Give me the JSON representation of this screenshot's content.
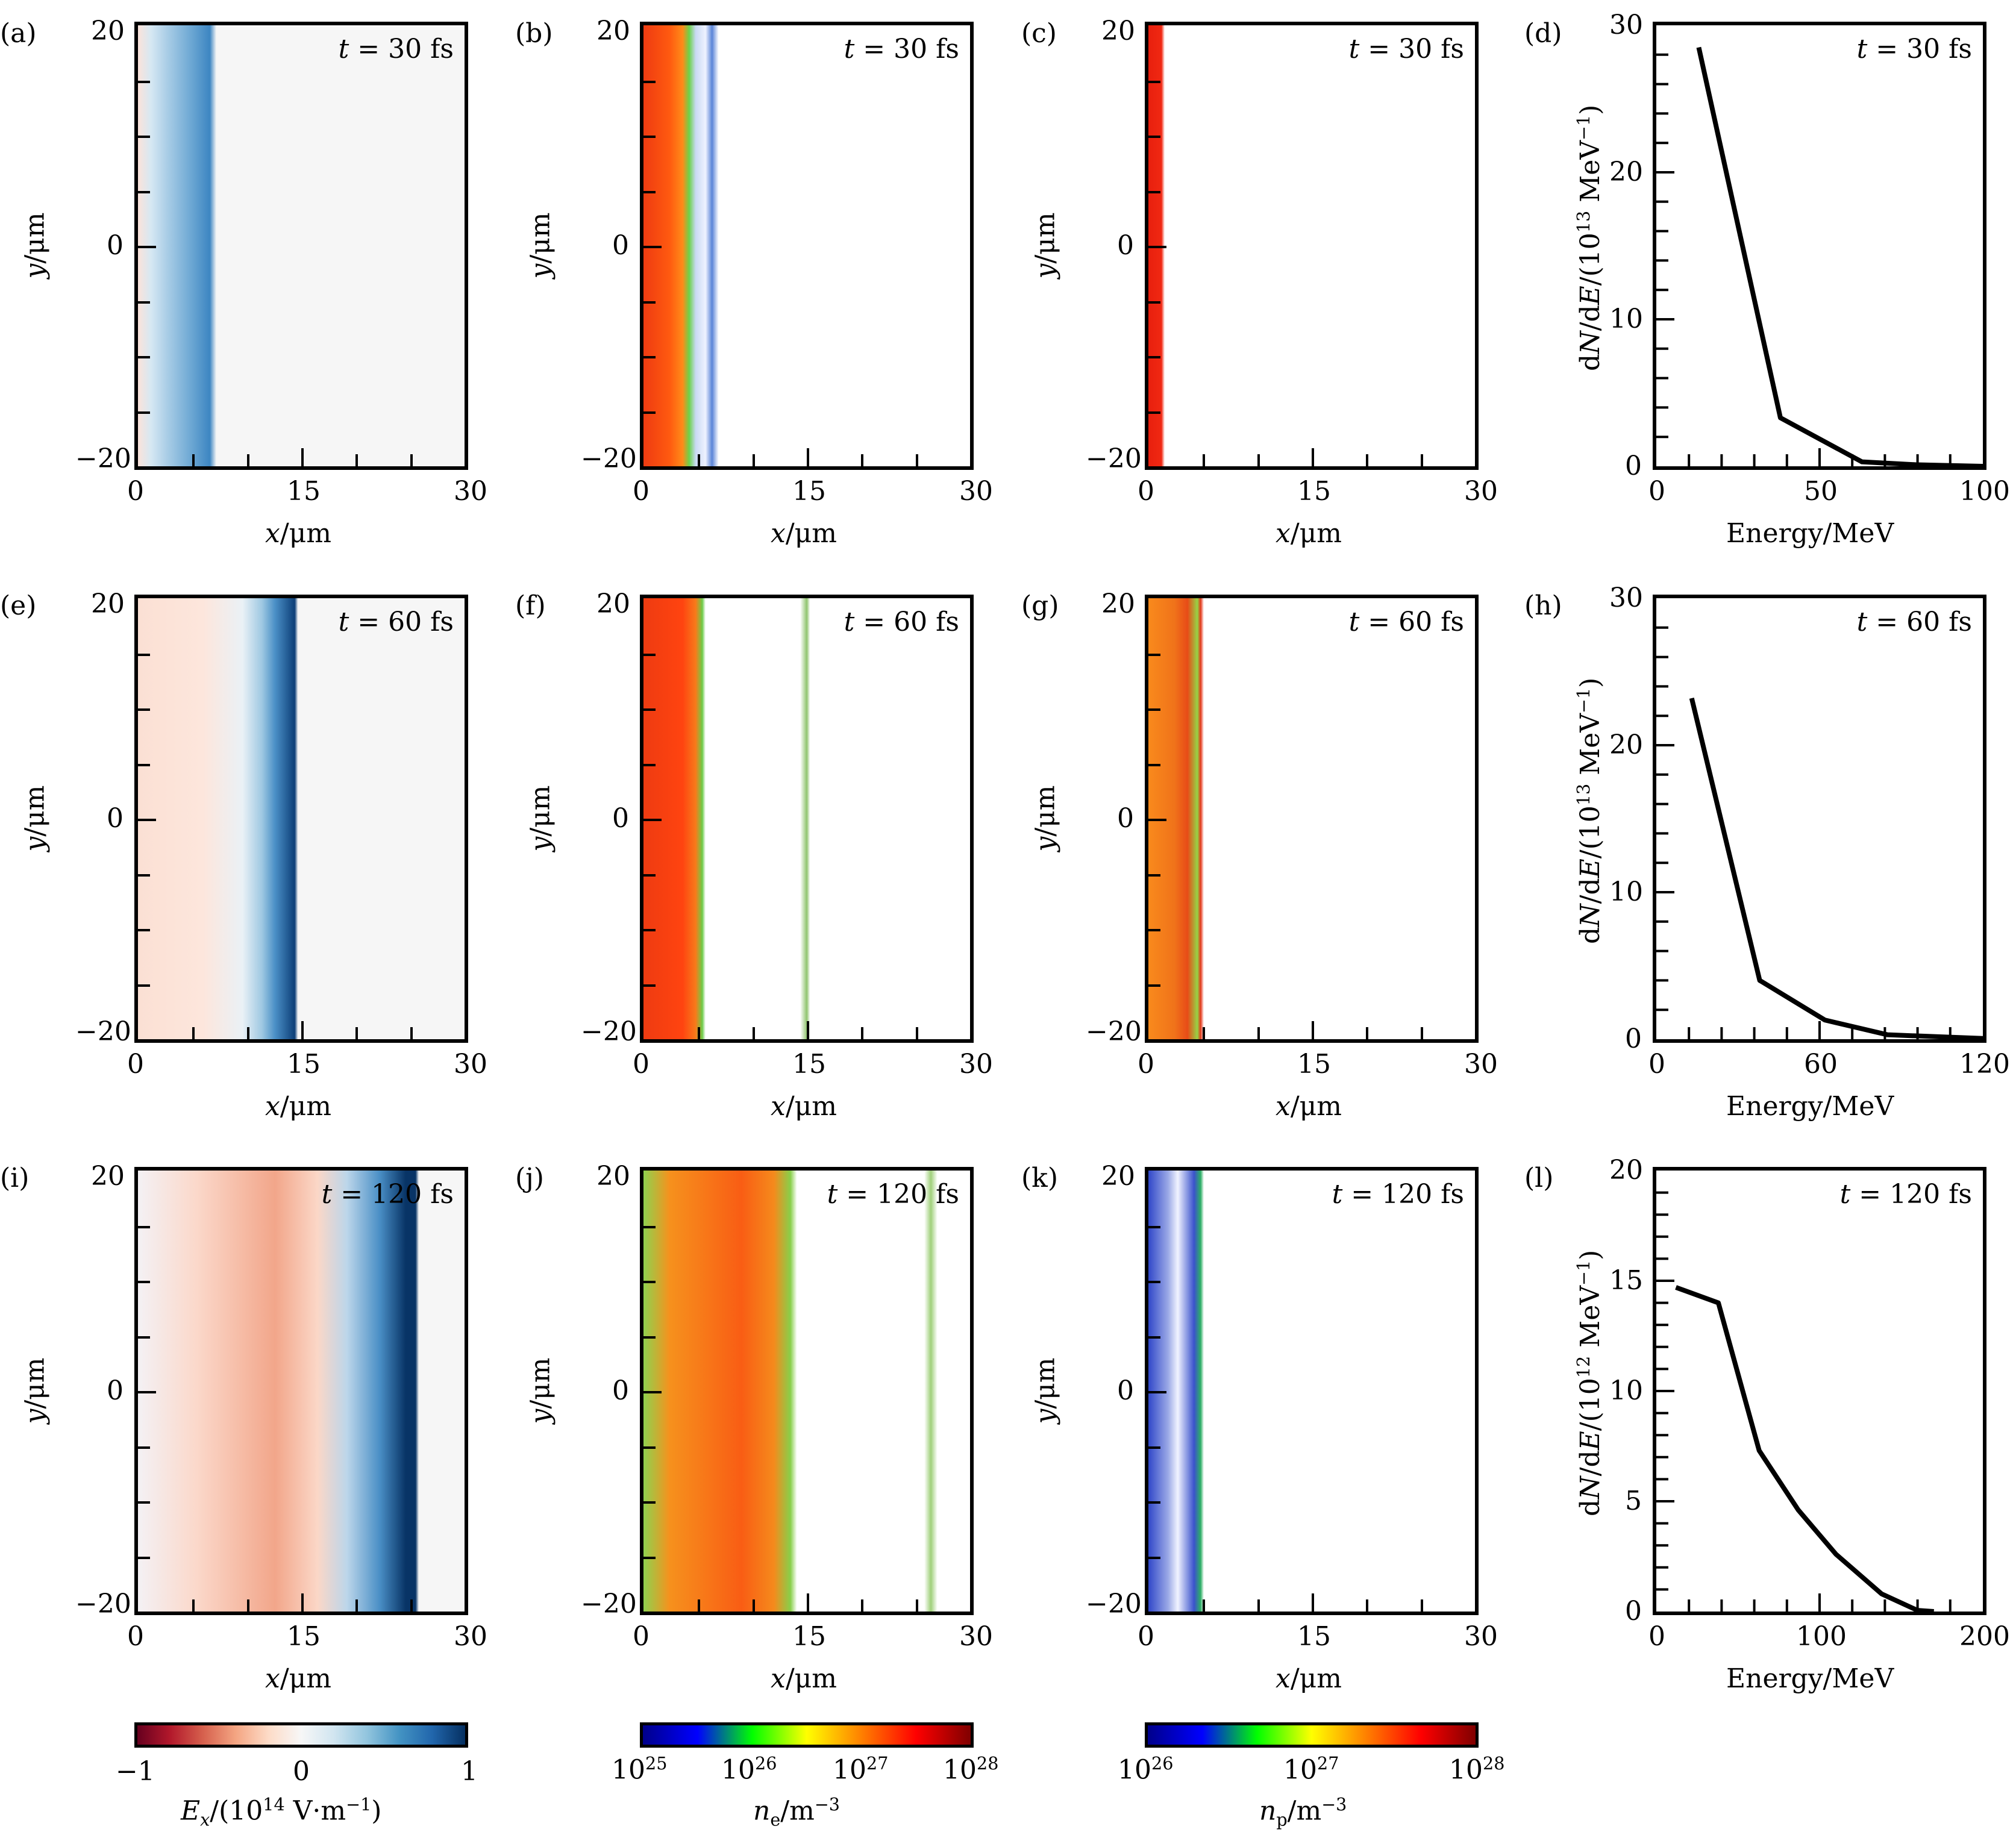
{
  "panels": {
    "a": {
      "label": "(a)",
      "time": "t = 30 fs",
      "kind": "Ex field"
    },
    "b": {
      "label": "(b)",
      "time": "t = 30 fs",
      "kind": "electron density"
    },
    "c": {
      "label": "(c)",
      "time": "t = 30 fs",
      "kind": "proton density"
    },
    "d": {
      "label": "(d)",
      "time": "t = 30 fs",
      "kind": "energy spectrum"
    },
    "e": {
      "label": "(e)",
      "time": "t = 60 fs",
      "kind": "Ex field"
    },
    "f": {
      "label": "(f)",
      "time": "t = 60 fs",
      "kind": "electron density"
    },
    "g": {
      "label": "(g)",
      "time": "t = 60 fs",
      "kind": "proton density"
    },
    "h": {
      "label": "(h)",
      "time": "t = 60 fs",
      "kind": "energy spectrum"
    },
    "i": {
      "label": "(i)",
      "time": "t = 120 fs",
      "kind": "Ex field"
    },
    "j": {
      "label": "(j)",
      "time": "t = 120 fs",
      "kind": "electron density"
    },
    "k": {
      "label": "(k)",
      "time": "t = 120 fs",
      "kind": "proton density"
    },
    "l": {
      "label": "(l)",
      "time": "t = 120 fs",
      "kind": "energy spectrum"
    }
  },
  "map_axes": {
    "xlabel": "x/μm",
    "ylabel": "y/μm",
    "xticks": [
      "0",
      "15",
      "30"
    ],
    "yticks": [
      "20",
      "0",
      "−20"
    ],
    "xlim": [
      0,
      30
    ],
    "ylim": [
      -20,
      20
    ]
  },
  "colorbars": {
    "ex": {
      "label": "Ex/(10^14 V·m^−1)",
      "ticks": [
        "−1",
        "0",
        "1"
      ],
      "range": [
        -1,
        1
      ],
      "colors": [
        "#67001f",
        "#b2182b",
        "#d6604d",
        "#f4a582",
        "#fddbc7",
        "#f7f7f7",
        "#d1e5f0",
        "#92c5de",
        "#4393c3",
        "#2166ac",
        "#053061"
      ]
    },
    "ne": {
      "label": "ne/m^−3",
      "ticks": [
        "10^25",
        "10^26",
        "10^27",
        "10^28"
      ],
      "range": [
        "1e25",
        "1e28"
      ],
      "scale": "log",
      "colors": [
        "#00008b",
        "#0000ff",
        "#00ff00",
        "#ffff00",
        "#ff8000",
        "#ff0000",
        "#800000"
      ]
    },
    "np": {
      "label": "np/m^−3",
      "ticks": [
        "10^26",
        "10^27",
        "10^28"
      ],
      "range": [
        "1e26",
        "1e28"
      ],
      "scale": "log",
      "colors": [
        "#00008b",
        "#0000ff",
        "#00ff00",
        "#ffff00",
        "#ff8000",
        "#ff0000",
        "#800000"
      ]
    }
  },
  "chart_data": [
    {
      "id": "d",
      "type": "line",
      "title": "t = 30 fs",
      "xlabel": "Energy/MeV",
      "ylabel": "dN/dE/(10^13 MeV^−1)",
      "xlim": [
        0,
        100
      ],
      "ylim": [
        0,
        30
      ],
      "xticks": [
        0,
        50,
        100
      ],
      "yticks": [
        0,
        10,
        20,
        30
      ],
      "x": [
        13,
        38,
        63,
        80,
        100
      ],
      "y": [
        28.5,
        3.3,
        0.3,
        0.1,
        0.0
      ]
    },
    {
      "id": "h",
      "type": "line",
      "title": "t = 60 fs",
      "xlabel": "Energy/MeV",
      "ylabel": "dN/dE/(10^13 MeV^−1)",
      "xlim": [
        0,
        120
      ],
      "ylim": [
        0,
        30
      ],
      "xticks": [
        0,
        60,
        120
      ],
      "yticks": [
        0,
        10,
        20,
        30
      ],
      "x": [
        13,
        38,
        62,
        85,
        120
      ],
      "y": [
        23.2,
        4.0,
        1.3,
        0.3,
        0.05
      ]
    },
    {
      "id": "l",
      "type": "line",
      "title": "t = 120 fs",
      "xlabel": "Energy/MeV",
      "ylabel": "dN/dE/(10^12 MeV^−1)",
      "xlim": [
        0,
        200
      ],
      "ylim": [
        0,
        20
      ],
      "xticks": [
        0,
        100,
        200
      ],
      "yticks": [
        0,
        5,
        10,
        15,
        20
      ],
      "x": [
        12,
        38,
        63,
        87,
        110,
        138,
        160,
        170
      ],
      "y": [
        14.7,
        14.0,
        7.3,
        4.6,
        2.6,
        0.8,
        0.05,
        0.0
      ]
    }
  ]
}
